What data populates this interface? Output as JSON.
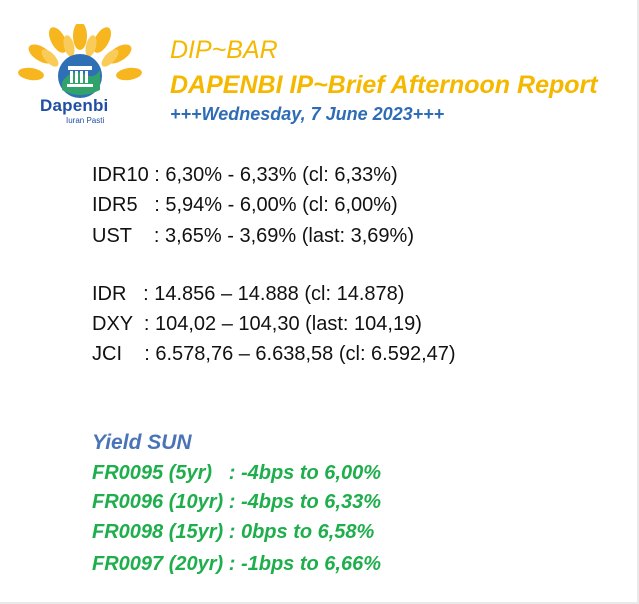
{
  "logo": {
    "word": "Dapenbi",
    "tagline": "Iuran Pasti"
  },
  "header": {
    "title": "DIP~BAR",
    "subtitle": "DAPENBI IP~Brief Afternoon Report",
    "date": "+++Wednesday, 7 June 2023+++"
  },
  "yields": [
    "IDR10 : 6,30% - 6,33% (cl: 6,33%)",
    "IDR5   : 5,94% - 6,00% (cl: 6,00%)",
    "UST    : 3,65% - 3,69% (last: 3,69%)"
  ],
  "markets": [
    "IDR   : 14.856 – 14.888 (cl: 14.878)",
    "DXY  : 104,02 – 104,30 (last: 104,19)",
    "JCI    : 6.578,76 – 6.638,58 (cl: 6.592,47)"
  ],
  "yield_sun": {
    "title": "Yield SUN",
    "lines": [
      "FR0095 (5yr)   : -4bps to 6,00%",
      "FR0096 (10yr) : -4bps to 6,33%",
      "FR0098 (15yr) : 0bps to 6,58%",
      "FR0097 (20yr) : -1bps to 6,66%"
    ]
  },
  "colors": {
    "title": "#f5b800",
    "date": "#2e6cb5",
    "sun_title": "#4a74b6",
    "sun_lines": "#1eae4c"
  }
}
